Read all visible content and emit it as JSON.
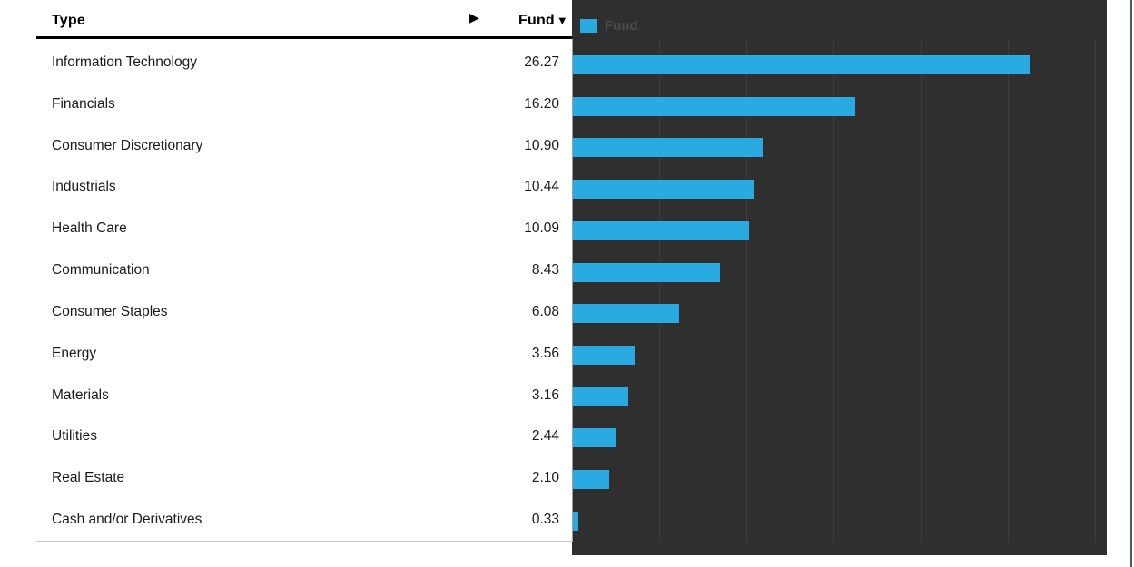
{
  "table": {
    "header": {
      "type_label": "Type",
      "expand_icon": "▶",
      "fund_label": "Fund",
      "sort_icon": "▼"
    },
    "rows": [
      {
        "type": "Information Technology",
        "fund": "26.27"
      },
      {
        "type": "Financials",
        "fund": "16.20"
      },
      {
        "type": "Consumer Discretionary",
        "fund": "10.90"
      },
      {
        "type": "Industrials",
        "fund": "10.44"
      },
      {
        "type": "Health Care",
        "fund": "10.09"
      },
      {
        "type": "Communication",
        "fund": "8.43"
      },
      {
        "type": "Consumer Staples",
        "fund": "6.08"
      },
      {
        "type": "Energy",
        "fund": "3.56"
      },
      {
        "type": "Materials",
        "fund": "3.16"
      },
      {
        "type": "Utilities",
        "fund": "2.44"
      },
      {
        "type": "Real Estate",
        "fund": "2.10"
      },
      {
        "type": "Cash and/or Derivatives",
        "fund": "0.33"
      }
    ]
  },
  "legend": {
    "label": "Fund"
  },
  "chart_data": {
    "type": "bar",
    "orientation": "horizontal",
    "title": "",
    "xlabel": "",
    "ylabel": "Type",
    "categories": [
      "Information Technology",
      "Financials",
      "Consumer Discretionary",
      "Industrials",
      "Health Care",
      "Communication",
      "Consumer Staples",
      "Energy",
      "Materials",
      "Utilities",
      "Real Estate",
      "Cash and/or Derivatives"
    ],
    "series": [
      {
        "name": "Fund",
        "values": [
          26.27,
          16.2,
          10.9,
          10.44,
          10.09,
          8.43,
          6.08,
          3.56,
          3.16,
          2.44,
          2.1,
          0.33
        ]
      }
    ],
    "xlim": [
      0,
      30.7
    ],
    "gridline_values": [
      0,
      5,
      10,
      15,
      20,
      25,
      30
    ],
    "grid": true,
    "legend_position": "top-left"
  },
  "colors": {
    "bar": "#29abe2",
    "panel_bg": "#2f2f30",
    "gridline": "#3d3d3f",
    "axis_line": "#9e9e9e",
    "legend_text": "#4b4b4e",
    "header_rule": "#000000",
    "bottom_rule": "#c6c6c6",
    "right_border": "#456049"
  }
}
